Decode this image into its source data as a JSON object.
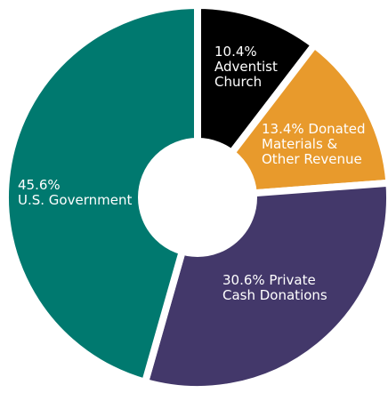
{
  "chart_data": {
    "type": "pie",
    "donut": true,
    "slices": [
      {
        "label": "10.4%\nAdventist\nChurch",
        "value": 10.4,
        "color": "#000000"
      },
      {
        "label": "13.4% Donated\nMaterials &\nOther Revenue",
        "value": 13.4,
        "color": "#E89A2C"
      },
      {
        "label": "30.6% Private\nCash Donations",
        "value": 30.6,
        "color": "#43386A"
      },
      {
        "label": "45.6%\nU.S. Government",
        "value": 45.6,
        "color": "#00796F"
      }
    ],
    "start_angle_deg": 0,
    "direction": "clockwise",
    "background_color": "#ffffff"
  }
}
